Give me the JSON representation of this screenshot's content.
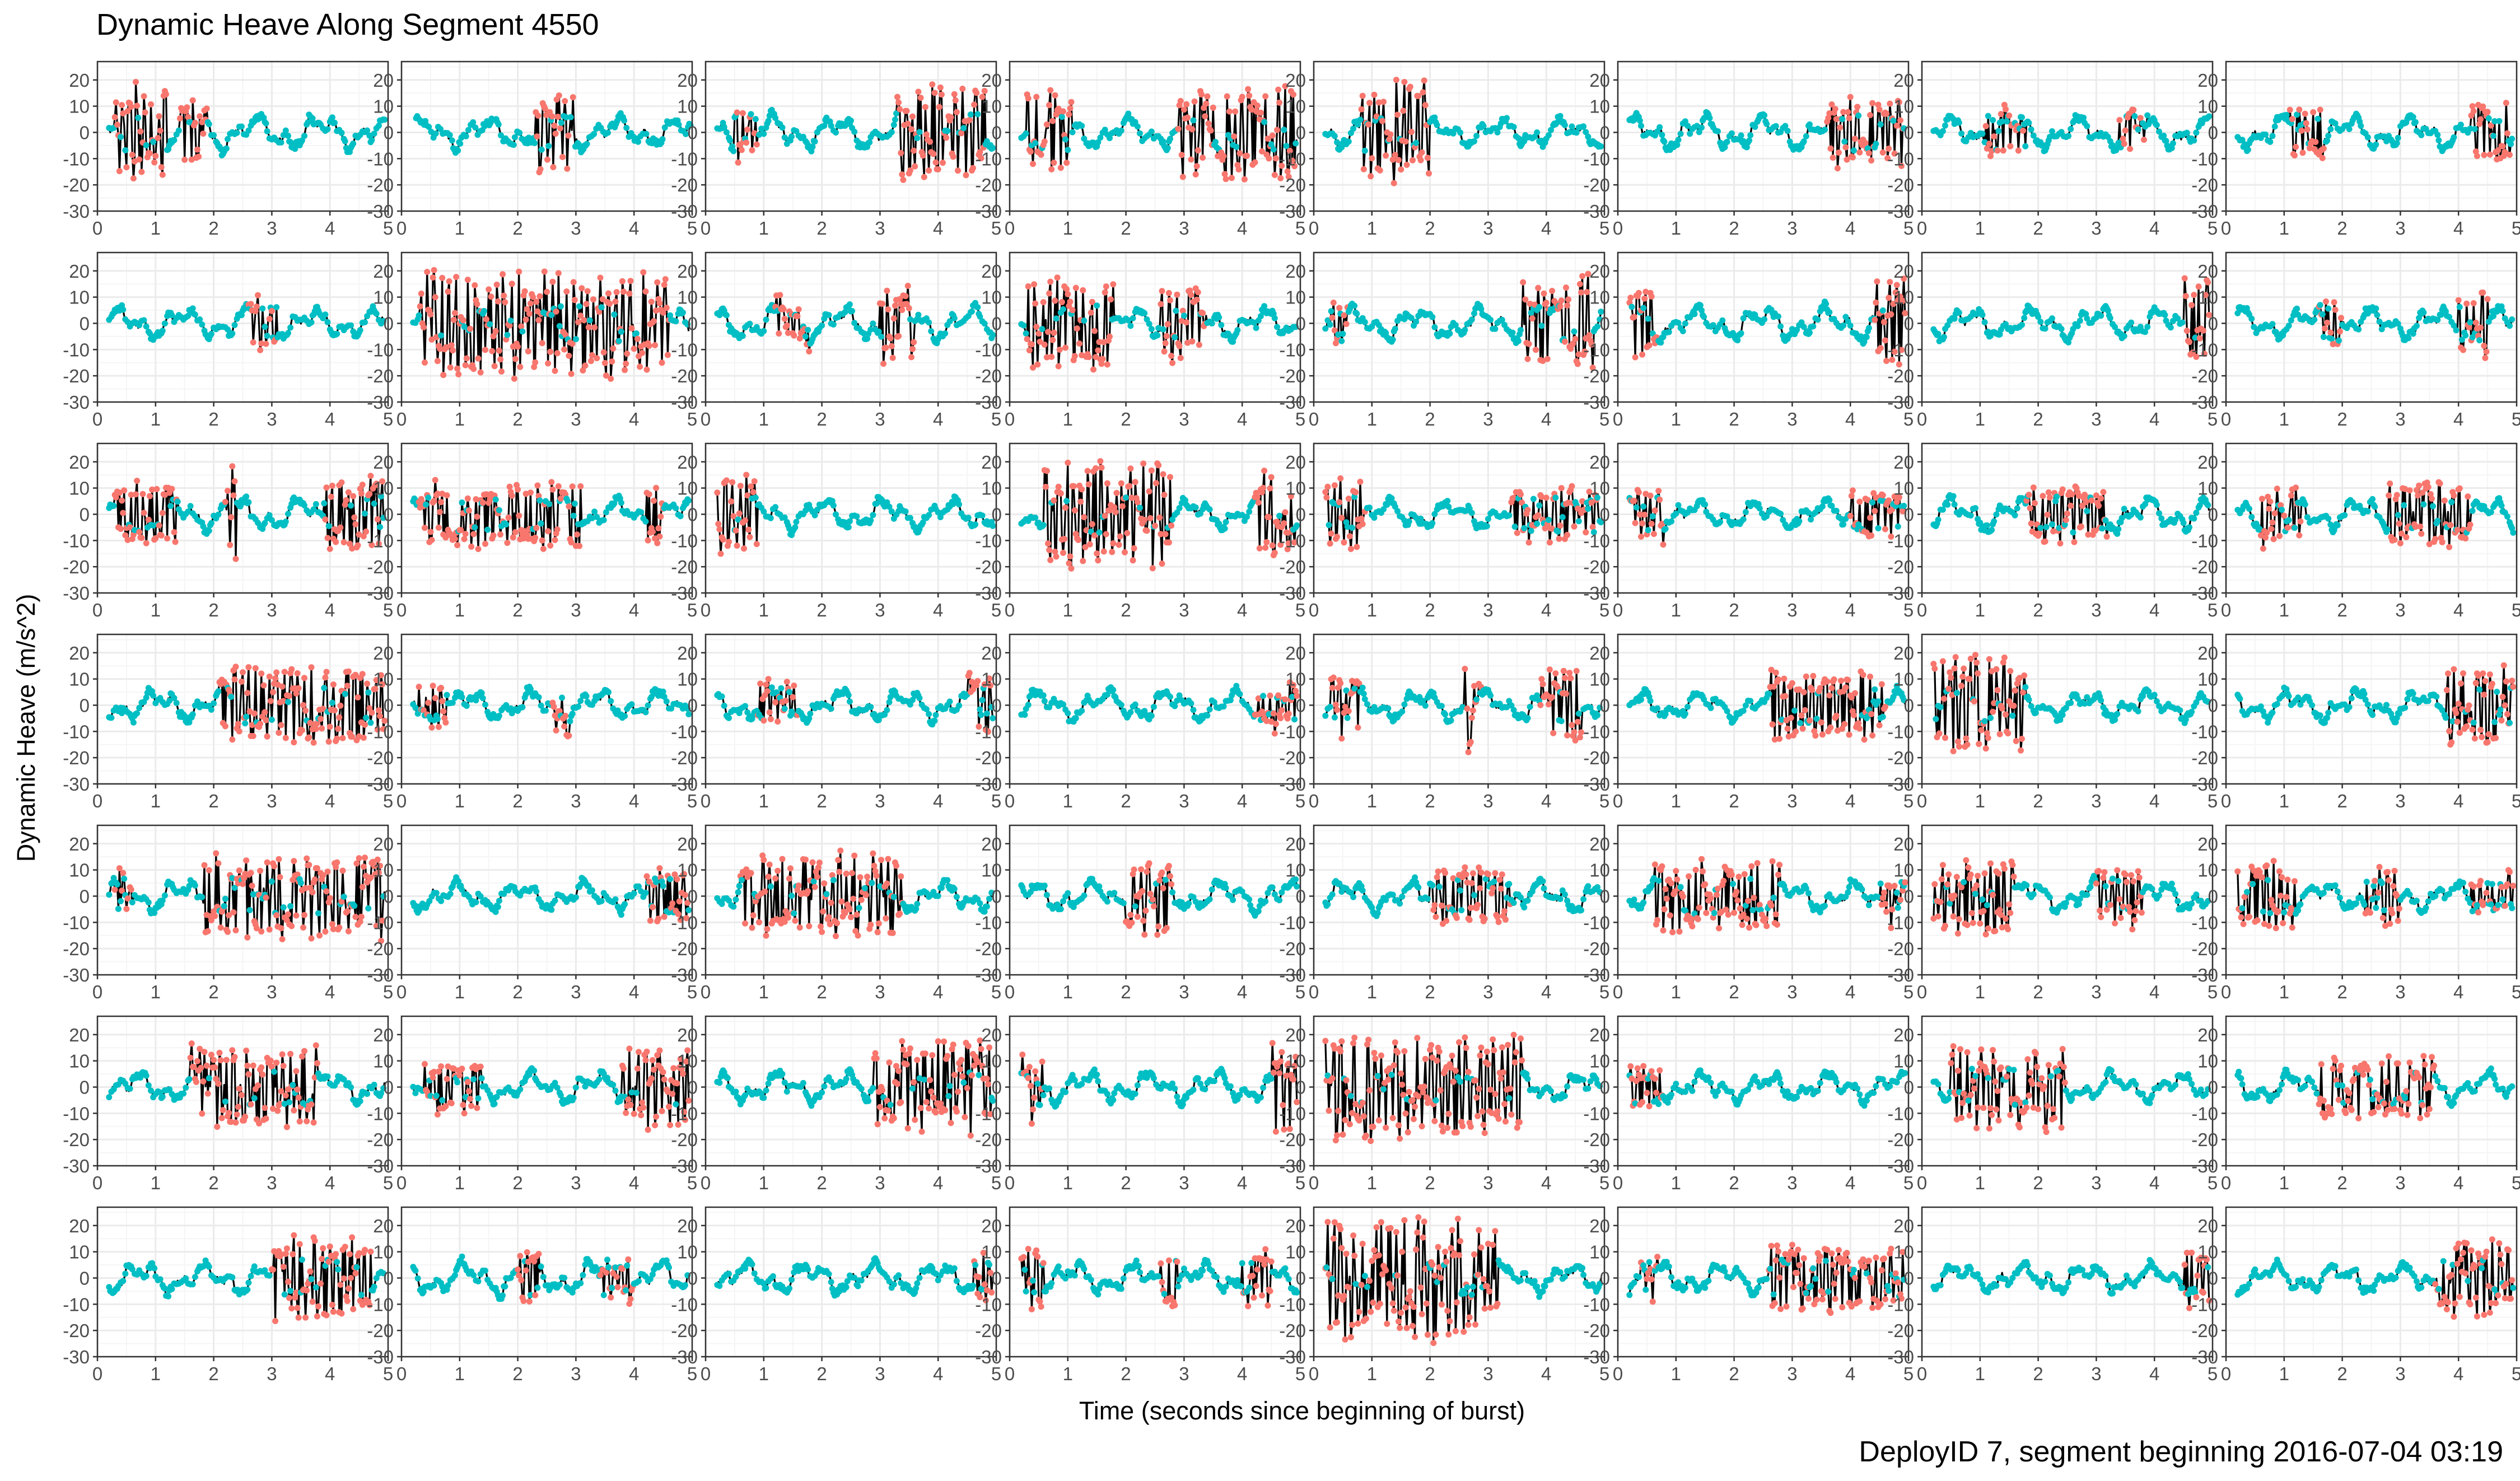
{
  "title": "Dynamic Heave Along Segment 4550",
  "xlabel": "Time (seconds since beginning of burst)",
  "ylabel": "Dynamic Heave (m/s^2)",
  "caption": "DeployID 7, segment beginning 2016-07-04 03:19",
  "colors": {
    "line": "#000000",
    "high_activity_points": "#F8766D",
    "low_activity_points": "#00BFC4",
    "grid_major": "#EBEBEB",
    "grid_minor": "#F5F5F5",
    "panel_border": "#333333"
  },
  "chart_data": {
    "type": "line",
    "layout": {
      "rows": 7,
      "cols": 8
    },
    "xlim": [
      0,
      5
    ],
    "ylim": [
      -30,
      27
    ],
    "x_ticks": [
      "0",
      "1",
      "2",
      "3",
      "4",
      "5"
    ],
    "y_ticks": [
      "20",
      "10",
      "0",
      "-10",
      "-20",
      "-30"
    ],
    "sample_rate_hz": 50,
    "grid": true,
    "point_colors_mode": "two-state (salmon = high activity, teal = low activity)",
    "panels": [
      {
        "amp": 1.3,
        "start": 0.2,
        "end": 4.95,
        "bursts": [
          [
            0.3,
            1.2,
            18
          ],
          [
            1.4,
            1.9,
            12
          ]
        ]
      },
      {
        "amp": 1.1,
        "start": 0.25,
        "end": 4.98,
        "bursts": [
          [
            2.3,
            3.0,
            16
          ]
        ]
      },
      {
        "amp": 1.2,
        "start": 0.2,
        "end": 4.95,
        "bursts": [
          [
            0.5,
            0.9,
            8
          ],
          [
            3.3,
            4.8,
            18
          ]
        ]
      },
      {
        "amp": 1.1,
        "start": 0.2,
        "end": 4.95,
        "bursts": [
          [
            0.3,
            1.1,
            16
          ],
          [
            2.9,
            4.9,
            18
          ]
        ]
      },
      {
        "amp": 1.0,
        "start": 0.2,
        "end": 4.95,
        "bursts": [
          [
            0.8,
            2.0,
            22
          ]
        ]
      },
      {
        "amp": 1.2,
        "start": 0.2,
        "end": 4.95,
        "bursts": [
          [
            3.6,
            4.9,
            14
          ]
        ]
      },
      {
        "amp": 1.1,
        "start": 0.2,
        "end": 4.95,
        "bursts": [
          [
            1.1,
            1.8,
            8
          ],
          [
            3.4,
            3.9,
            8
          ]
        ]
      },
      {
        "amp": 1.2,
        "start": 0.2,
        "end": 4.95,
        "bursts": [
          [
            1.1,
            1.7,
            10
          ],
          [
            4.2,
            4.9,
            10
          ]
        ]
      },
      {
        "amp": 1.1,
        "start": 0.2,
        "end": 4.95,
        "bursts": [
          [
            2.6,
            3.1,
            10
          ]
        ]
      },
      {
        "amp": 1.1,
        "start": 0.2,
        "end": 4.95,
        "bursts": [
          [
            0.3,
            4.6,
            20
          ]
        ]
      },
      {
        "amp": 1.2,
        "start": 0.2,
        "end": 4.95,
        "bursts": [
          [
            1.2,
            1.8,
            7
          ],
          [
            3.0,
            3.6,
            14
          ]
        ]
      },
      {
        "amp": 1.1,
        "start": 0.2,
        "end": 4.95,
        "bursts": [
          [
            0.3,
            1.8,
            18
          ],
          [
            2.6,
            3.4,
            14
          ]
        ]
      },
      {
        "amp": 1.1,
        "start": 0.2,
        "end": 4.95,
        "bursts": [
          [
            0.3,
            0.6,
            8
          ],
          [
            3.6,
            4.8,
            18
          ]
        ]
      },
      {
        "amp": 1.2,
        "start": 0.2,
        "end": 4.95,
        "bursts": [
          [
            0.2,
            0.7,
            14
          ],
          [
            4.4,
            4.95,
            18
          ]
        ]
      },
      {
        "amp": 1.1,
        "start": 0.2,
        "end": 4.95,
        "bursts": [
          [
            4.5,
            4.95,
            18
          ]
        ]
      },
      {
        "amp": 1.1,
        "start": 0.2,
        "end": 4.95,
        "bursts": [
          [
            1.6,
            2.0,
            8
          ],
          [
            4.0,
            4.5,
            14
          ]
        ]
      },
      {
        "amp": 1.2,
        "start": 0.2,
        "end": 4.95,
        "bursts": [
          [
            0.3,
            1.4,
            12
          ],
          [
            2.2,
            2.4,
            22
          ],
          [
            3.9,
            4.9,
            14
          ]
        ]
      },
      {
        "amp": 1.1,
        "start": 0.2,
        "end": 4.95,
        "bursts": [
          [
            0.3,
            3.1,
            12
          ],
          [
            4.2,
            4.5,
            10
          ]
        ]
      },
      {
        "amp": 1.1,
        "start": 0.2,
        "end": 4.95,
        "bursts": [
          [
            0.2,
            0.9,
            16
          ]
        ]
      },
      {
        "amp": 1.0,
        "start": 0.2,
        "end": 4.95,
        "bursts": [
          [
            0.6,
            2.8,
            20
          ],
          [
            4.2,
            4.9,
            16
          ]
        ]
      },
      {
        "amp": 1.0,
        "start": 0.2,
        "end": 4.95,
        "bursts": [
          [
            0.2,
            0.9,
            14
          ],
          [
            3.4,
            4.9,
            10
          ]
        ]
      },
      {
        "amp": 1.0,
        "start": 0.2,
        "end": 4.95,
        "bursts": [
          [
            0.2,
            0.8,
            10
          ],
          [
            4.0,
            4.9,
            8
          ]
        ]
      },
      {
        "amp": 1.2,
        "start": 0.2,
        "end": 4.95,
        "bursts": [
          [
            1.8,
            3.2,
            10
          ]
        ]
      },
      {
        "amp": 1.2,
        "start": 0.2,
        "end": 4.95,
        "bursts": [
          [
            0.6,
            1.3,
            10
          ],
          [
            2.8,
            4.2,
            12
          ]
        ]
      },
      {
        "amp": 1.1,
        "start": 0.2,
        "end": 4.95,
        "bursts": [
          [
            2.1,
            4.95,
            14
          ]
        ]
      },
      {
        "amp": 1.1,
        "start": 0.2,
        "end": 4.95,
        "bursts": [
          [
            0.3,
            0.8,
            8
          ],
          [
            2.6,
            2.9,
            10
          ]
        ]
      },
      {
        "amp": 1.1,
        "start": 0.2,
        "end": 4.95,
        "bursts": [
          [
            0.9,
            1.6,
            8
          ],
          [
            4.5,
            4.95,
            12
          ]
        ]
      },
      {
        "amp": 1.1,
        "start": 0.2,
        "end": 4.95,
        "bursts": [
          [
            4.2,
            4.95,
            6
          ]
        ]
      },
      {
        "amp": 1.1,
        "start": 0.2,
        "end": 4.95,
        "bursts": [
          [
            0.3,
            0.8,
            12
          ],
          [
            2.6,
            2.9,
            18
          ],
          [
            3.9,
            4.6,
            14
          ]
        ]
      },
      {
        "amp": 1.0,
        "start": 0.2,
        "end": 4.95,
        "bursts": [
          [
            2.6,
            4.6,
            12
          ]
        ]
      },
      {
        "amp": 1.0,
        "start": 0.2,
        "end": 4.95,
        "bursts": [
          [
            0.2,
            1.8,
            18
          ]
        ]
      },
      {
        "amp": 1.1,
        "start": 0.2,
        "end": 4.95,
        "bursts": [
          [
            3.8,
            4.95,
            14
          ]
        ]
      },
      {
        "amp": 1.2,
        "start": 0.2,
        "end": 4.95,
        "bursts": [
          [
            0.3,
            0.6,
            6
          ],
          [
            1.8,
            4.9,
            16
          ]
        ]
      },
      {
        "amp": 1.0,
        "start": 0.2,
        "end": 4.95,
        "bursts": [
          [
            4.2,
            4.95,
            10
          ]
        ]
      },
      {
        "amp": 1.1,
        "start": 0.2,
        "end": 4.95,
        "bursts": [
          [
            0.6,
            3.4,
            16
          ]
        ]
      },
      {
        "amp": 1.1,
        "start": 0.2,
        "end": 4.95,
        "bursts": [
          [
            2.0,
            2.8,
            14
          ]
        ]
      },
      {
        "amp": 1.1,
        "start": 0.2,
        "end": 4.95,
        "bursts": [
          [
            2.0,
            3.4,
            10
          ]
        ]
      },
      {
        "amp": 1.1,
        "start": 0.2,
        "end": 4.95,
        "bursts": [
          [
            0.6,
            2.8,
            14
          ],
          [
            4.5,
            4.95,
            6
          ]
        ]
      },
      {
        "amp": 1.1,
        "start": 0.2,
        "end": 4.95,
        "bursts": [
          [
            0.2,
            1.6,
            14
          ],
          [
            3.0,
            3.8,
            10
          ]
        ]
      },
      {
        "amp": 1.0,
        "start": 0.2,
        "end": 4.95,
        "bursts": [
          [
            0.2,
            1.2,
            14
          ],
          [
            2.4,
            3.0,
            10
          ],
          [
            4.2,
            4.95,
            6
          ]
        ]
      },
      {
        "amp": 1.1,
        "start": 0.2,
        "end": 4.95,
        "bursts": [
          [
            1.6,
            3.8,
            16
          ]
        ]
      },
      {
        "amp": 1.1,
        "start": 0.2,
        "end": 4.95,
        "bursts": [
          [
            0.4,
            1.4,
            10
          ],
          [
            3.8,
            4.95,
            16
          ]
        ]
      },
      {
        "amp": 1.1,
        "start": 0.2,
        "end": 4.95,
        "bursts": [
          [
            2.9,
            4.9,
            18
          ]
        ]
      },
      {
        "amp": 1.1,
        "start": 0.2,
        "end": 4.95,
        "bursts": [
          [
            0.2,
            0.6,
            14
          ],
          [
            4.5,
            4.95,
            18
          ]
        ]
      },
      {
        "amp": 1.0,
        "start": 0.2,
        "end": 4.95,
        "bursts": [
          [
            0.2,
            3.6,
            20
          ]
        ]
      },
      {
        "amp": 1.0,
        "start": 0.2,
        "end": 4.95,
        "bursts": [
          [
            0.2,
            0.8,
            8
          ]
        ]
      },
      {
        "amp": 1.0,
        "start": 0.2,
        "end": 4.95,
        "bursts": [
          [
            0.5,
            2.5,
            16
          ]
        ]
      },
      {
        "amp": 1.1,
        "start": 0.2,
        "end": 4.95,
        "bursts": [
          [
            1.6,
            3.6,
            12
          ]
        ]
      },
      {
        "amp": 1.1,
        "start": 0.2,
        "end": 4.95,
        "bursts": [
          [
            3.0,
            4.7,
            16
          ]
        ]
      },
      {
        "amp": 1.2,
        "start": 0.2,
        "end": 4.95,
        "bursts": [
          [
            2.0,
            2.4,
            10
          ],
          [
            3.4,
            4.0,
            8
          ]
        ]
      },
      {
        "amp": 1.1,
        "start": 0.2,
        "end": 4.95,
        "bursts": [
          [
            4.6,
            4.95,
            10
          ]
        ]
      },
      {
        "amp": 1.1,
        "start": 0.2,
        "end": 4.95,
        "bursts": [
          [
            0.2,
            0.6,
            12
          ],
          [
            2.6,
            2.9,
            10
          ],
          [
            4.0,
            4.5,
            10
          ]
        ]
      },
      {
        "amp": 1.0,
        "start": 0.2,
        "end": 4.95,
        "bursts": [
          [
            0.2,
            3.2,
            24
          ]
        ]
      },
      {
        "amp": 1.1,
        "start": 0.2,
        "end": 4.95,
        "bursts": [
          [
            0.4,
            0.7,
            10
          ],
          [
            2.6,
            4.9,
            12
          ]
        ]
      },
      {
        "amp": 1.0,
        "start": 0.2,
        "end": 4.95,
        "bursts": [
          [
            4.5,
            4.95,
            10
          ]
        ]
      },
      {
        "amp": 1.0,
        "start": 0.2,
        "end": 4.95,
        "bursts": [
          [
            3.6,
            4.95,
            16
          ]
        ]
      }
    ]
  }
}
